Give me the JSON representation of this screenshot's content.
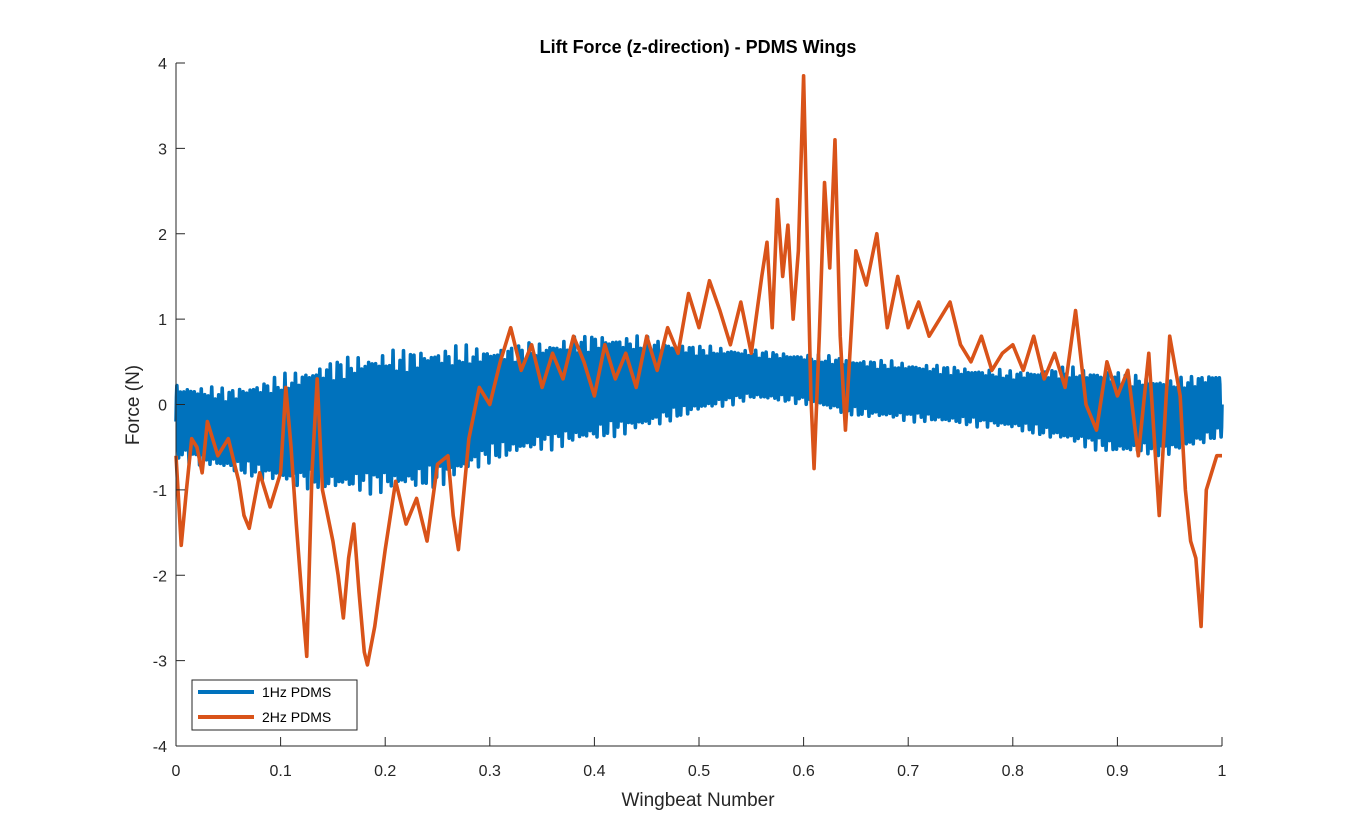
{
  "chart_data": {
    "type": "line",
    "title": "Lift Force (z-direction) - PDMS Wings",
    "xlabel": "Wingbeat Number",
    "ylabel": "Force (N)",
    "xlim": [
      0,
      1
    ],
    "ylim": [
      -4,
      4
    ],
    "xticks": [
      0,
      0.1,
      0.2,
      0.3,
      0.4,
      0.5,
      0.6,
      0.7,
      0.8,
      0.9,
      1
    ],
    "xtick_labels": [
      "0",
      "0.1",
      "0.2",
      "0.3",
      "0.4",
      "0.5",
      "0.6",
      "0.7",
      "0.8",
      "0.9",
      "1"
    ],
    "yticks": [
      -4,
      -3,
      -2,
      -1,
      0,
      1,
      2,
      3,
      4
    ],
    "ytick_labels": [
      "-4",
      "-3",
      "-2",
      "-1",
      "0",
      "1",
      "2",
      "3",
      "4"
    ],
    "grid": false,
    "legend_position": "bottom-left",
    "series": [
      {
        "name": "1Hz PDMS",
        "color": "#0072BD",
        "style": "high-frequency oscillation",
        "center": {
          "x": [
            0,
            0.05,
            0.1,
            0.15,
            0.2,
            0.25,
            0.3,
            0.35,
            0.4,
            0.45,
            0.5,
            0.55,
            0.6,
            0.65,
            0.7,
            0.75,
            0.8,
            0.85,
            0.9,
            0.95,
            1
          ],
          "y": [
            -0.2,
            -0.3,
            -0.3,
            -0.25,
            -0.2,
            -0.15,
            0.0,
            0.1,
            0.2,
            0.25,
            0.3,
            0.35,
            0.3,
            0.2,
            0.15,
            0.1,
            0.05,
            0.0,
            -0.1,
            -0.15,
            0.0
          ]
        },
        "amplitude": {
          "x": [
            0,
            0.05,
            0.1,
            0.15,
            0.2,
            0.25,
            0.3,
            0.35,
            0.4,
            0.45,
            0.5,
            0.55,
            0.6,
            0.65,
            0.7,
            0.75,
            0.8,
            0.85,
            0.9,
            0.95,
            1
          ],
          "y": [
            0.45,
            0.5,
            0.65,
            0.8,
            0.85,
            0.85,
            0.7,
            0.65,
            0.65,
            0.55,
            0.4,
            0.3,
            0.3,
            0.35,
            0.35,
            0.35,
            0.35,
            0.45,
            0.5,
            0.45,
            0.4
          ]
        }
      },
      {
        "name": "2Hz PDMS",
        "color": "#D95319",
        "x": [
          0,
          0.005,
          0.01,
          0.015,
          0.02,
          0.025,
          0.03,
          0.04,
          0.05,
          0.06,
          0.065,
          0.07,
          0.08,
          0.09,
          0.1,
          0.105,
          0.11,
          0.115,
          0.12,
          0.125,
          0.13,
          0.135,
          0.14,
          0.15,
          0.155,
          0.16,
          0.165,
          0.17,
          0.175,
          0.18,
          0.183,
          0.19,
          0.2,
          0.21,
          0.22,
          0.23,
          0.24,
          0.25,
          0.26,
          0.265,
          0.27,
          0.28,
          0.29,
          0.3,
          0.31,
          0.32,
          0.33,
          0.34,
          0.35,
          0.36,
          0.37,
          0.38,
          0.39,
          0.4,
          0.41,
          0.42,
          0.43,
          0.44,
          0.45,
          0.46,
          0.47,
          0.48,
          0.49,
          0.5,
          0.51,
          0.52,
          0.53,
          0.54,
          0.55,
          0.56,
          0.565,
          0.57,
          0.575,
          0.58,
          0.585,
          0.59,
          0.595,
          0.6,
          0.603,
          0.607,
          0.61,
          0.615,
          0.62,
          0.625,
          0.63,
          0.635,
          0.64,
          0.65,
          0.66,
          0.67,
          0.68,
          0.69,
          0.7,
          0.71,
          0.72,
          0.73,
          0.74,
          0.75,
          0.76,
          0.77,
          0.78,
          0.79,
          0.8,
          0.81,
          0.82,
          0.83,
          0.84,
          0.85,
          0.86,
          0.87,
          0.88,
          0.89,
          0.9,
          0.91,
          0.92,
          0.93,
          0.94,
          0.95,
          0.96,
          0.965,
          0.97,
          0.975,
          0.98,
          0.985,
          0.99,
          0.995,
          1
        ],
        "y": [
          -0.6,
          -1.65,
          -1.0,
          -0.4,
          -0.5,
          -0.8,
          -0.2,
          -0.6,
          -0.4,
          -0.9,
          -1.3,
          -1.45,
          -0.8,
          -1.2,
          -0.8,
          0.2,
          -0.5,
          -1.4,
          -2.2,
          -2.95,
          -0.8,
          0.3,
          -1.0,
          -1.6,
          -2.0,
          -2.5,
          -1.8,
          -1.4,
          -2.2,
          -2.9,
          -3.05,
          -2.6,
          -1.7,
          -0.9,
          -1.4,
          -1.1,
          -1.6,
          -0.7,
          -0.6,
          -1.3,
          -1.7,
          -0.4,
          0.2,
          0.0,
          0.5,
          0.9,
          0.4,
          0.7,
          0.2,
          0.6,
          0.3,
          0.8,
          0.5,
          0.1,
          0.7,
          0.3,
          0.6,
          0.2,
          0.8,
          0.4,
          0.9,
          0.6,
          1.3,
          0.9,
          1.45,
          1.1,
          0.7,
          1.2,
          0.6,
          1.5,
          1.9,
          0.9,
          2.4,
          1.5,
          2.1,
          1.0,
          1.8,
          3.85,
          2.2,
          0.1,
          -0.75,
          0.8,
          2.6,
          1.6,
          3.1,
          0.8,
          -0.3,
          1.8,
          1.4,
          2.0,
          0.9,
          1.5,
          0.9,
          1.2,
          0.8,
          1.0,
          1.2,
          0.7,
          0.5,
          0.8,
          0.4,
          0.6,
          0.7,
          0.4,
          0.8,
          0.3,
          0.6,
          0.2,
          1.1,
          0.0,
          -0.3,
          0.5,
          0.1,
          0.4,
          -0.6,
          0.6,
          -1.3,
          0.8,
          0.1,
          -1.0,
          -1.6,
          -1.8,
          -2.6,
          -1.0,
          -0.8,
          -0.6,
          -0.6
        ]
      }
    ]
  }
}
